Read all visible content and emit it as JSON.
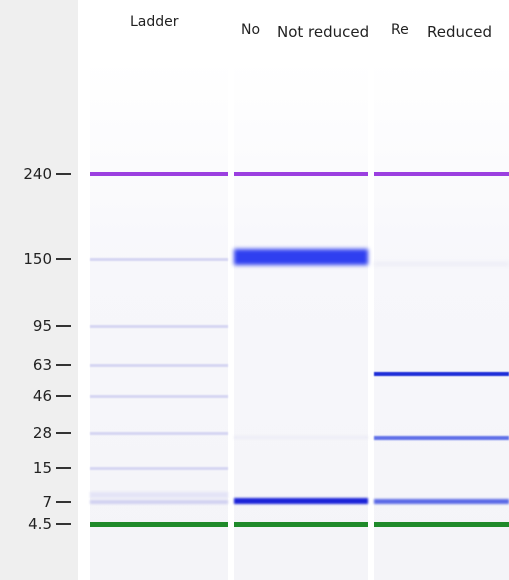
{
  "header": {
    "lanes": [
      "Ladder",
      "Not reduced",
      "Reduced"
    ],
    "clipped": [
      "No",
      "Re"
    ]
  },
  "size_labels": [
    "240",
    "150",
    "95",
    "63",
    "46",
    "28",
    "15",
    "7",
    "4.5"
  ]
}
